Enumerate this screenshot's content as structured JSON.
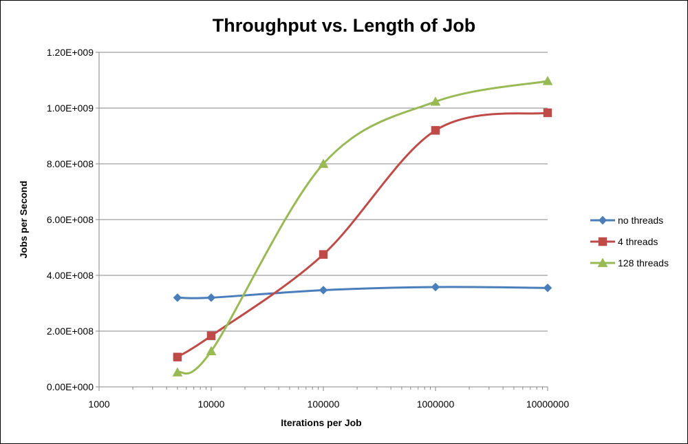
{
  "chart_data": {
    "type": "line",
    "title": "Throughput vs. Length of Job",
    "xlabel": "Iterations per Job",
    "ylabel": "Jobs per Second",
    "x_scale": "log",
    "xlim": [
      1000,
      10000000
    ],
    "ylim": [
      0,
      1200000000
    ],
    "x_tick_labels": [
      "1000",
      "10000",
      "100000",
      "1000000",
      "10000000"
    ],
    "x_ticks": [
      1000,
      10000,
      100000,
      1000000,
      10000000
    ],
    "y_tick_labels": [
      "0.00E+000",
      "2.00E+008",
      "4.00E+008",
      "6.00E+008",
      "8.00E+008",
      "1.00E+009",
      "1.20E+009"
    ],
    "y_ticks": [
      0,
      200000000,
      400000000,
      600000000,
      800000000,
      1000000000,
      1200000000
    ],
    "grid": "horizontal",
    "legend_position": "right",
    "x": [
      5000,
      10000,
      100000,
      1000000,
      10000000
    ],
    "series": [
      {
        "name": "no threads",
        "color": "#4a7ebb",
        "marker": "diamond",
        "values": [
          320000000,
          320000000,
          347000000,
          358000000,
          355000000
        ]
      },
      {
        "name": "4 threads",
        "color": "#be4b48",
        "marker": "square",
        "values": [
          107000000,
          183000000,
          475000000,
          920000000,
          983000000
        ]
      },
      {
        "name": "128 threads",
        "color": "#98b954",
        "marker": "triangle",
        "values": [
          52000000,
          128000000,
          800000000,
          1023000000,
          1097000000
        ]
      }
    ]
  }
}
